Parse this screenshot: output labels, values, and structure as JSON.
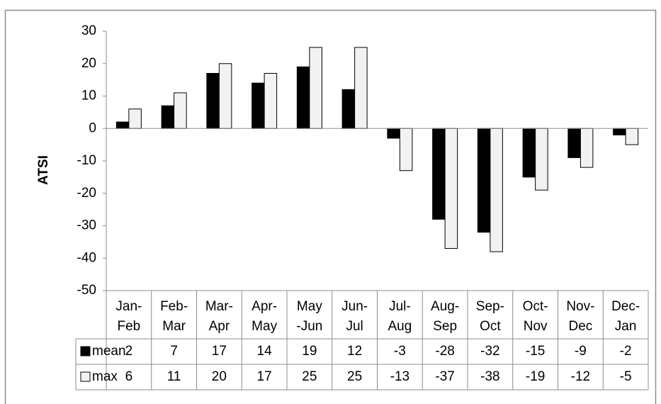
{
  "chart_data": {
    "type": "bar",
    "y_label": "ATSI",
    "categories": [
      [
        "Jan-",
        "Feb"
      ],
      [
        "Feb-",
        "Mar"
      ],
      [
        "Mar-",
        "Apr"
      ],
      [
        "Apr-",
        "May"
      ],
      [
        "May",
        "-Jun"
      ],
      [
        "Jun-",
        "Jul"
      ],
      [
        "Jul-",
        "Aug"
      ],
      [
        "Aug-",
        "Sep"
      ],
      [
        "Sep-",
        "Oct"
      ],
      [
        "Oct-",
        "Nov"
      ],
      [
        "Nov-",
        "Dec"
      ],
      [
        "Dec-",
        "Jan"
      ]
    ],
    "series": [
      {
        "name": "mean",
        "color": "#000000",
        "values": [
          2,
          7,
          17,
          14,
          19,
          12,
          -3,
          -28,
          -32,
          -15,
          -9,
          -2
        ]
      },
      {
        "name": "max",
        "color": "#f2f2f2",
        "values": [
          6,
          11,
          20,
          17,
          25,
          25,
          -13,
          -37,
          -38,
          -19,
          -12,
          -5
        ]
      }
    ],
    "ylim": [
      -50,
      30
    ],
    "yticks": [
      -50,
      -40,
      -30,
      -20,
      -10,
      0,
      10,
      20,
      30
    ],
    "grid": false,
    "data_table": true
  }
}
